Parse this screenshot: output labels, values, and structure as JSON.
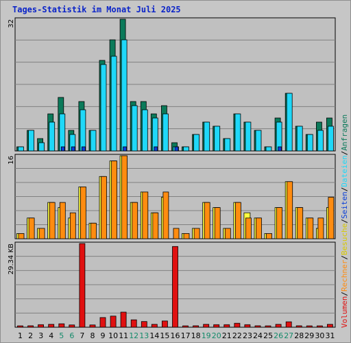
{
  "title": "Tages-Statistik im Monat Juli 2025",
  "colors": {
    "hits": "#0b7a5a",
    "files": "#1fd8f8",
    "pages": "#0a3fd8",
    "visits": "#ffff40",
    "sites": "#ff8c10",
    "kbytes": "#e01010",
    "weekend": "#138a6a",
    "weekday": "#000000"
  },
  "legend_right": {
    "top": [
      {
        "text": "Anfragen",
        "color": "#0b7a5a"
      },
      {
        "text": "Dateien",
        "color": "#1fd8f8"
      },
      {
        "text": "Seiten",
        "color": "#0a3fd8"
      }
    ],
    "mid": [
      {
        "text": "Besuche",
        "color": "#d8c800"
      },
      {
        "text": "Rechner",
        "color": "#ff8c10"
      }
    ],
    "bottom": [
      {
        "text": "Volumen",
        "color": "#e01010"
      }
    ],
    "separator": "/"
  },
  "chart_data": [
    {
      "type": "bar",
      "title": "Tages-Statistik im Monat Juli 2025",
      "ylim": [
        0,
        32
      ],
      "y_tick_label": "32",
      "categories": [
        "1",
        "2",
        "3",
        "4",
        "5",
        "6",
        "7",
        "8",
        "9",
        "10",
        "11",
        "12",
        "13",
        "14",
        "15",
        "16",
        "17",
        "18",
        "19",
        "20",
        "21",
        "22",
        "23",
        "24",
        "25",
        "26",
        "27",
        "28",
        "29",
        "30",
        "31"
      ],
      "series": [
        {
          "name": "Anfragen",
          "values": [
            1,
            5,
            3,
            9,
            13,
            5,
            12,
            5,
            22,
            27,
            32,
            12,
            12,
            9,
            11,
            2,
            1,
            4,
            7,
            6,
            3,
            9,
            7,
            5,
            1,
            8,
            14,
            6,
            4,
            7,
            8
          ]
        },
        {
          "name": "Dateien",
          "values": [
            1,
            5,
            2,
            7,
            9,
            4,
            10,
            5,
            21,
            23,
            27,
            11,
            10,
            8,
            9,
            1,
            1,
            4,
            7,
            6,
            3,
            9,
            7,
            5,
            1,
            7,
            14,
            6,
            4,
            5,
            6
          ]
        },
        {
          "name": "Seiten",
          "values": [
            0,
            0,
            0,
            0,
            1,
            1,
            1,
            0,
            0,
            0,
            1,
            0,
            0,
            1,
            0,
            1,
            0,
            0,
            0,
            0,
            0,
            0,
            0,
            0,
            0,
            1,
            0,
            0,
            0,
            0,
            0
          ]
        }
      ]
    },
    {
      "type": "bar",
      "ylim": [
        0,
        16
      ],
      "y_tick_label": "16",
      "categories": [
        "1",
        "2",
        "3",
        "4",
        "5",
        "6",
        "7",
        "8",
        "9",
        "10",
        "11",
        "12",
        "13",
        "14",
        "15",
        "16",
        "17",
        "18",
        "19",
        "20",
        "21",
        "22",
        "23",
        "24",
        "25",
        "26",
        "27",
        "28",
        "29",
        "30",
        "31"
      ],
      "series": [
        {
          "name": "Besuche",
          "values": [
            1,
            4,
            2,
            7,
            6,
            4,
            10,
            3,
            12,
            15,
            16,
            7,
            9,
            5,
            8,
            0,
            1,
            2,
            7,
            6,
            2,
            7,
            5,
            4,
            1,
            6,
            11,
            6,
            4,
            2,
            6
          ]
        },
        {
          "name": "Rechner",
          "values": [
            1,
            4,
            2,
            7,
            7,
            5,
            10,
            3,
            12,
            15,
            16,
            7,
            9,
            5,
            9,
            2,
            1,
            2,
            7,
            6,
            2,
            7,
            4,
            4,
            1,
            6,
            11,
            6,
            4,
            4,
            8
          ]
        }
      ]
    },
    {
      "type": "bar",
      "ylim": [
        0,
        29.34
      ],
      "y_tick_label": "29.34 KB",
      "categories": [
        "1",
        "2",
        "3",
        "4",
        "5",
        "6",
        "7",
        "8",
        "9",
        "10",
        "11",
        "12",
        "13",
        "14",
        "15",
        "16",
        "17",
        "18",
        "19",
        "20",
        "21",
        "22",
        "23",
        "24",
        "25",
        "26",
        "27",
        "28",
        "29",
        "30",
        "31"
      ],
      "series": [
        {
          "name": "Volumen",
          "values": [
            0.4,
            0.5,
            0.9,
            1.0,
            1.2,
            0.8,
            29.34,
            0.8,
            3.4,
            3.9,
            5.3,
            2.6,
            2.0,
            1.0,
            2.2,
            28.3,
            0.1,
            0.5,
            1.0,
            0.9,
            0.9,
            1.4,
            0.9,
            0.5,
            0.4,
            1.0,
            1.9,
            0.5,
            0.4,
            0.4,
            1.0
          ]
        }
      ]
    }
  ],
  "days": [
    {
      "label": "1",
      "weekend": false
    },
    {
      "label": "2",
      "weekend": false
    },
    {
      "label": "3",
      "weekend": false
    },
    {
      "label": "4",
      "weekend": false
    },
    {
      "label": "5",
      "weekend": true
    },
    {
      "label": "6",
      "weekend": true
    },
    {
      "label": "7",
      "weekend": false
    },
    {
      "label": "8",
      "weekend": false
    },
    {
      "label": "9",
      "weekend": false
    },
    {
      "label": "10",
      "weekend": false
    },
    {
      "label": "11",
      "weekend": false
    },
    {
      "label": "12",
      "weekend": true
    },
    {
      "label": "13",
      "weekend": true
    },
    {
      "label": "14",
      "weekend": false
    },
    {
      "label": "15",
      "weekend": false
    },
    {
      "label": "16",
      "weekend": false
    },
    {
      "label": "17",
      "weekend": false
    },
    {
      "label": "18",
      "weekend": false
    },
    {
      "label": "19",
      "weekend": true
    },
    {
      "label": "20",
      "weekend": true
    },
    {
      "label": "21",
      "weekend": false
    },
    {
      "label": "22",
      "weekend": false
    },
    {
      "label": "23",
      "weekend": false
    },
    {
      "label": "24",
      "weekend": false
    },
    {
      "label": "25",
      "weekend": false
    },
    {
      "label": "26",
      "weekend": true
    },
    {
      "label": "27",
      "weekend": true
    },
    {
      "label": "28",
      "weekend": false
    },
    {
      "label": "29",
      "weekend": false
    },
    {
      "label": "30",
      "weekend": false
    },
    {
      "label": "31",
      "weekend": false
    }
  ]
}
